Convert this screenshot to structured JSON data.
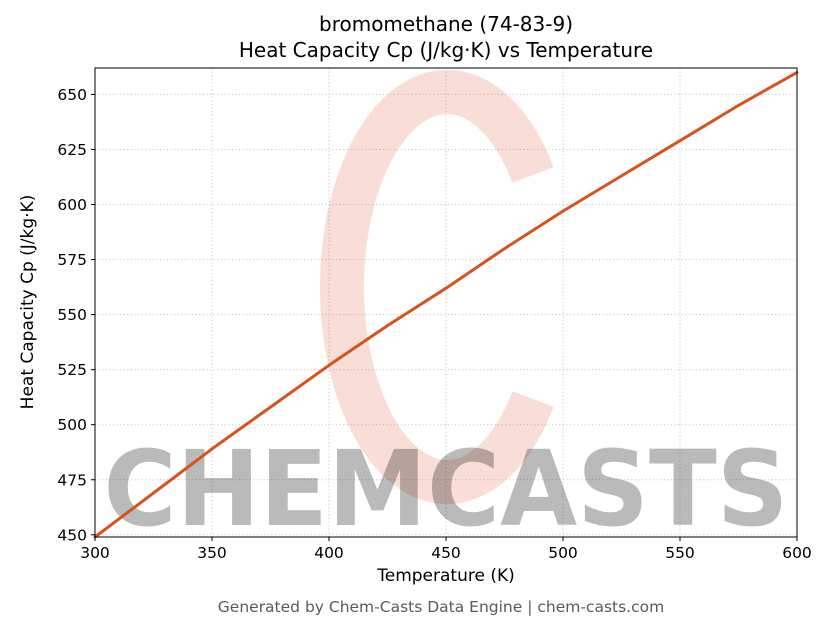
{
  "title": {
    "line1": "bromomethane (74-83-9)",
    "line2": "Heat Capacity Cp (J/kg·K) vs Temperature"
  },
  "footer": "Generated by Chem-Casts Data Engine | chem-casts.com",
  "watermark": {
    "text": "CHEMCASTS",
    "logo": "chemcasts-c-logo",
    "color": "#dd5939"
  },
  "chart_data": {
    "type": "line",
    "title": "bromomethane (74-83-9) Heat Capacity Cp (J/kg·K) vs Temperature",
    "xlabel": "Temperature (K)",
    "ylabel": "Heat Capacity Cp (J/kg·K)",
    "xlim": [
      300,
      600
    ],
    "ylim": [
      449,
      662
    ],
    "xticks": [
      300,
      350,
      400,
      450,
      500,
      550,
      600
    ],
    "yticks": [
      450,
      475,
      500,
      525,
      550,
      575,
      600,
      625,
      650
    ],
    "grid": true,
    "grid_style": "dotted",
    "legend": "none",
    "series": [
      {
        "name": "Cp",
        "color": "#d9521d",
        "x": [
          300,
          325,
          350,
          375,
          400,
          425,
          450,
          475,
          500,
          525,
          550,
          575,
          600
        ],
        "y": [
          449,
          469,
          489,
          508,
          527,
          545,
          562,
          580,
          597,
          613,
          629,
          645,
          660
        ]
      }
    ]
  }
}
